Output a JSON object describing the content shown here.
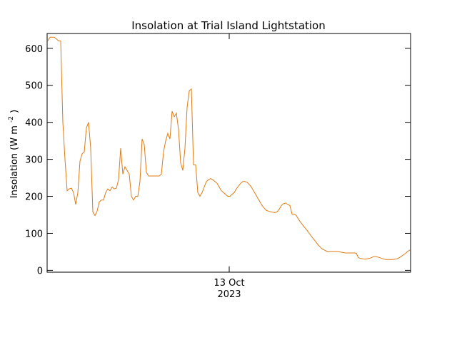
{
  "chart_data": {
    "type": "line",
    "title": "Insolation at Trial Island Lightstation",
    "ylabel_main": "Insolation (W m",
    "ylabel_sup": "-2",
    "ylabel_close": ")",
    "xlabel": "",
    "x_tick_label_line1": "13 Oct",
    "x_tick_label_line2": "2023",
    "ylim": [
      -5,
      640
    ],
    "y_ticks": [
      0,
      100,
      200,
      300,
      400,
      500,
      600
    ],
    "grid": false,
    "line_color": "#e07a14",
    "series": [
      {
        "values": [
          620,
          630,
          630,
          630,
          625,
          620,
          620,
          400,
          300,
          215,
          220,
          222,
          210,
          178,
          210,
          295,
          315,
          320,
          385,
          400,
          330,
          158,
          148,
          160,
          185,
          190,
          190,
          210,
          220,
          215,
          225,
          220,
          222,
          245,
          330,
          260,
          280,
          270,
          260,
          200,
          190,
          200,
          200,
          240,
          355,
          340,
          265,
          255,
          255,
          255,
          255,
          255,
          255,
          260,
          320,
          350,
          370,
          355,
          430,
          415,
          425,
          380,
          290,
          270,
          330,
          440,
          485,
          490,
          285,
          285,
          210,
          200,
          210,
          225,
          240,
          245,
          248,
          245,
          240,
          235,
          225,
          215,
          210,
          205,
          200,
          200,
          205,
          210,
          220,
          228,
          235,
          240,
          240,
          238,
          232,
          225,
          215,
          205,
          195,
          185,
          175,
          168,
          162,
          160,
          158,
          157,
          156,
          158,
          165,
          175,
          180,
          182,
          178,
          175,
          152,
          152,
          148,
          138,
          130,
          122,
          115,
          108,
          100,
          92,
          85,
          78,
          70,
          64,
          58,
          55,
          52,
          50,
          51,
          51,
          51,
          51,
          50,
          49,
          48,
          47,
          47,
          47,
          47,
          47,
          46,
          34,
          32,
          31,
          30,
          31,
          32,
          34,
          37,
          37,
          36,
          34,
          32,
          30,
          29,
          29,
          29,
          29,
          30,
          31,
          34,
          38,
          42,
          46,
          51,
          55
        ]
      }
    ]
  }
}
